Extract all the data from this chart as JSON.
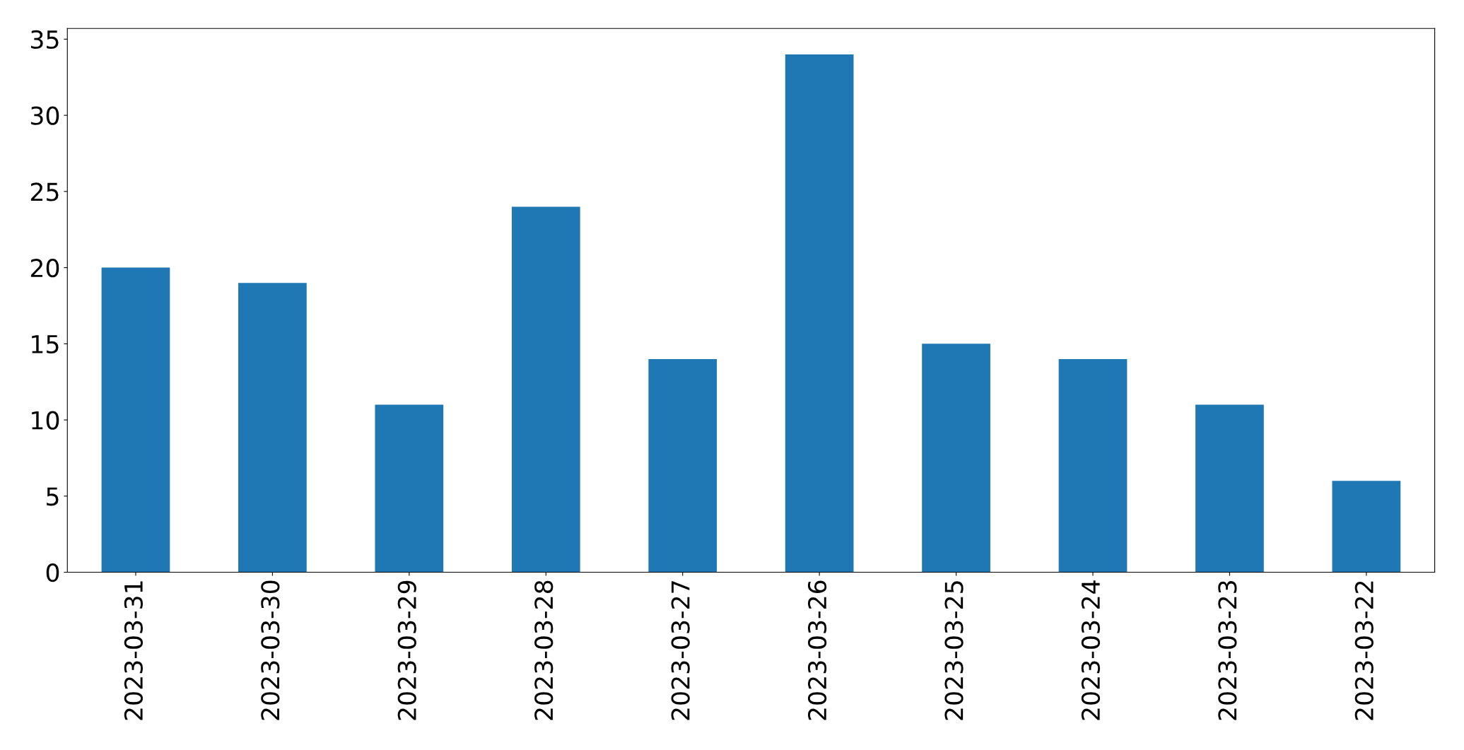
{
  "chart_data": {
    "type": "bar",
    "categories": [
      "2023-03-31",
      "2023-03-30",
      "2023-03-29",
      "2023-03-28",
      "2023-03-27",
      "2023-03-26",
      "2023-03-25",
      "2023-03-24",
      "2023-03-23",
      "2023-03-22"
    ],
    "values": [
      20,
      19,
      11,
      24,
      14,
      34,
      15,
      14,
      11,
      6
    ],
    "color": "#1f77b4",
    "ylim": [
      0,
      35.7
    ],
    "yticks": [
      0,
      5,
      10,
      15,
      20,
      25,
      30,
      35
    ],
    "grid": false,
    "legend": false
  }
}
